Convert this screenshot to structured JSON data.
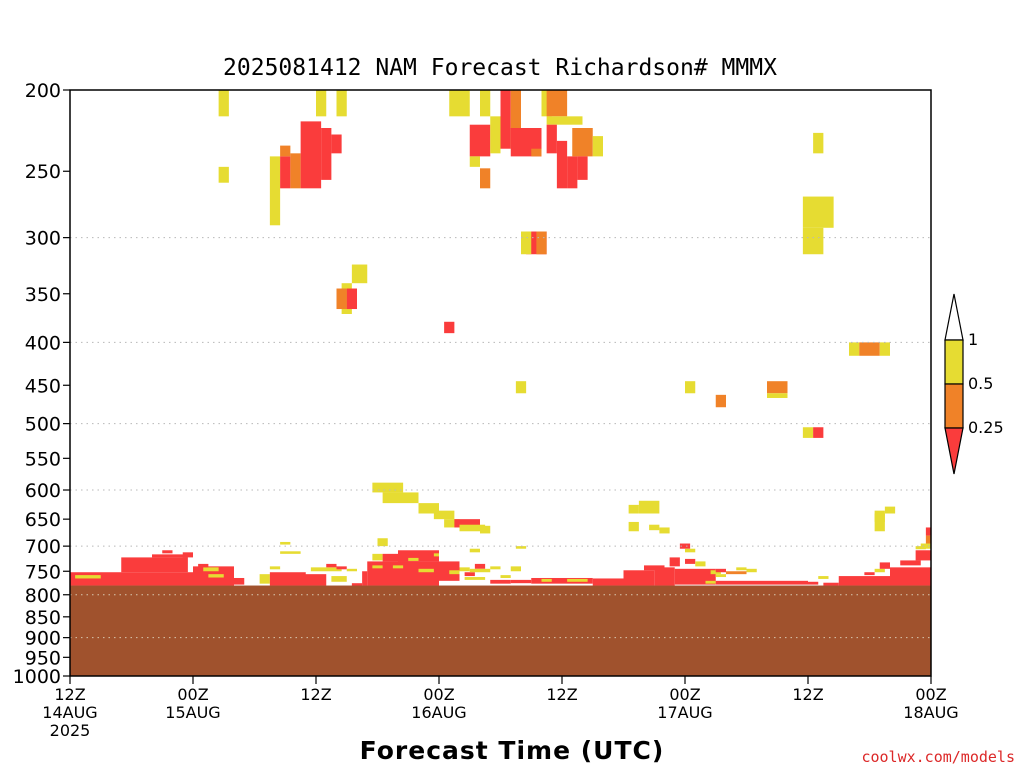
{
  "chart_data": {
    "type": "heatmap",
    "title": "2025081412 NAM Forecast Richardson# MMMX",
    "xlabel": "Forecast Time (UTC)",
    "ylabel": "",
    "watermark": "coolwx.com/models",
    "x_range_hours": [
      0,
      84
    ],
    "x_ticks": [
      {
        "hour": 0,
        "lines": [
          "12Z",
          "14AUG",
          "2025"
        ]
      },
      {
        "hour": 12,
        "lines": [
          "00Z",
          "15AUG"
        ]
      },
      {
        "hour": 24,
        "lines": [
          "12Z"
        ]
      },
      {
        "hour": 36,
        "lines": [
          "00Z",
          "16AUG"
        ]
      },
      {
        "hour": 48,
        "lines": [
          "12Z"
        ]
      },
      {
        "hour": 60,
        "lines": [
          "00Z",
          "17AUG"
        ]
      },
      {
        "hour": 72,
        "lines": [
          "12Z"
        ]
      },
      {
        "hour": 84,
        "lines": [
          "00Z",
          "18AUG"
        ]
      }
    ],
    "y_range_hpa": [
      200,
      1000
    ],
    "y_scale": "log",
    "y_ticks": [
      200,
      250,
      300,
      350,
      400,
      450,
      500,
      550,
      600,
      650,
      700,
      750,
      800,
      850,
      900,
      950,
      1000
    ],
    "dotted_grid_levels": [
      300,
      400,
      500,
      600,
      700,
      800,
      900,
      1000
    ],
    "terrain_pressure_hpa": 780,
    "terrain_color": "#a0522d",
    "legend": {
      "position": "right",
      "bins": [
        {
          "label": "1",
          "color": "#ffffff"
        },
        {
          "label": "0.5",
          "color": "#e6dc32"
        },
        {
          "label": "0.25",
          "color": "#f08228"
        },
        {
          "label": "",
          "color": "#fa3c3c"
        }
      ]
    },
    "colors": {
      "y": "#e6dc32",
      "o": "#f08228",
      "r": "#fa3c3c"
    },
    "cells": [
      {
        "t": 14.5,
        "t2": 15.5,
        "p": 200,
        "p2": 215,
        "c": "y"
      },
      {
        "t": 14.5,
        "t2": 15.5,
        "p": 247,
        "p2": 258,
        "c": "y"
      },
      {
        "t": 19.5,
        "t2": 20.5,
        "p": 240,
        "p2": 290,
        "c": "y"
      },
      {
        "t": 20.5,
        "t2": 21.5,
        "p": 240,
        "p2": 262,
        "c": "r"
      },
      {
        "t": 20.5,
        "t2": 21.5,
        "p": 233,
        "p2": 240,
        "c": "o"
      },
      {
        "t": 21.5,
        "t2": 22.5,
        "p": 238,
        "p2": 262,
        "c": "o"
      },
      {
        "t": 22.5,
        "t2": 24.5,
        "p": 218,
        "p2": 262,
        "c": "r"
      },
      {
        "t": 24,
        "t2": 25,
        "p": 200,
        "p2": 215,
        "c": "y"
      },
      {
        "t": 24.5,
        "t2": 25.5,
        "p": 222,
        "p2": 256,
        "c": "r"
      },
      {
        "t": 25.5,
        "t2": 26.5,
        "p": 226,
        "p2": 238,
        "c": "r"
      },
      {
        "t": 26,
        "t2": 27,
        "p": 200,
        "p2": 215,
        "c": "y"
      },
      {
        "t": 26.5,
        "t2": 27.5,
        "p": 340,
        "p2": 370,
        "c": "y"
      },
      {
        "t": 26,
        "t2": 27,
        "p": 345,
        "p2": 365,
        "c": "o"
      },
      {
        "t": 27,
        "t2": 28,
        "p": 345,
        "p2": 365,
        "c": "r"
      },
      {
        "t": 27.5,
        "t2": 29,
        "p": 323,
        "p2": 340,
        "c": "y"
      },
      {
        "t": 36.5,
        "t2": 37.5,
        "p": 378,
        "p2": 390,
        "c": "r"
      },
      {
        "t": 37,
        "t2": 39,
        "p": 200,
        "p2": 215,
        "c": "y"
      },
      {
        "t": 39,
        "t2": 41,
        "p": 220,
        "p2": 240,
        "c": "r"
      },
      {
        "t": 39,
        "t2": 40,
        "p": 240,
        "p2": 247,
        "c": "y"
      },
      {
        "t": 40,
        "t2": 41,
        "p": 248,
        "p2": 262,
        "c": "o"
      },
      {
        "t": 40,
        "t2": 41,
        "p": 200,
        "p2": 215,
        "c": "y"
      },
      {
        "t": 41,
        "t2": 42,
        "p": 215,
        "p2": 238,
        "c": "y"
      },
      {
        "t": 42,
        "t2": 43,
        "p": 200,
        "p2": 235,
        "c": "r"
      },
      {
        "t": 43,
        "t2": 44,
        "p": 200,
        "p2": 235,
        "c": "o"
      },
      {
        "t": 43,
        "t2": 44,
        "p": 222,
        "p2": 240,
        "c": "r"
      },
      {
        "t": 44,
        "t2": 46,
        "p": 222,
        "p2": 240,
        "c": "r"
      },
      {
        "t": 45,
        "t2": 46,
        "p": 235,
        "p2": 240,
        "c": "o"
      },
      {
        "t": 46,
        "t2": 47,
        "p": 200,
        "p2": 215,
        "c": "y"
      },
      {
        "t": 46.5,
        "t2": 48.5,
        "p": 200,
        "p2": 215,
        "c": "o"
      },
      {
        "t": 46.5,
        "t2": 50,
        "p": 215,
        "p2": 220,
        "c": "y"
      },
      {
        "t": 46.5,
        "t2": 47.5,
        "p": 220,
        "p2": 238,
        "c": "r"
      },
      {
        "t": 47.5,
        "t2": 48.5,
        "p": 230,
        "p2": 262,
        "c": "r"
      },
      {
        "t": 48.5,
        "t2": 49.5,
        "p": 240,
        "p2": 262,
        "c": "r"
      },
      {
        "t": 49,
        "t2": 51,
        "p": 222,
        "p2": 240,
        "c": "o"
      },
      {
        "t": 49.5,
        "t2": 50.5,
        "p": 240,
        "p2": 256,
        "c": "r"
      },
      {
        "t": 51,
        "t2": 52,
        "p": 227,
        "p2": 240,
        "c": "y"
      },
      {
        "t": 44.5,
        "t2": 46.5,
        "p": 295,
        "p2": 314,
        "c": "r"
      },
      {
        "t": 45.5,
        "t2": 46.5,
        "p": 295,
        "p2": 314,
        "c": "o"
      },
      {
        "t": 44,
        "t2": 45,
        "p": 295,
        "p2": 314,
        "c": "y"
      },
      {
        "t": 43.5,
        "t2": 44.5,
        "p": 445,
        "p2": 460,
        "c": "y"
      },
      {
        "t": 72.5,
        "t2": 73.5,
        "p": 225,
        "p2": 238,
        "c": "y"
      },
      {
        "t": 71.5,
        "t2": 74.5,
        "p": 268,
        "p2": 292,
        "c": "y"
      },
      {
        "t": 71.5,
        "t2": 73.5,
        "p": 292,
        "p2": 314,
        "c": "y"
      },
      {
        "t": 76,
        "t2": 77,
        "p": 400,
        "p2": 415,
        "c": "y"
      },
      {
        "t": 77,
        "t2": 79,
        "p": 400,
        "p2": 415,
        "c": "o"
      },
      {
        "t": 79,
        "t2": 80,
        "p": 400,
        "p2": 415,
        "c": "y"
      },
      {
        "t": 60,
        "t2": 61,
        "p": 445,
        "p2": 460,
        "c": "y"
      },
      {
        "t": 63,
        "t2": 64,
        "p": 462,
        "p2": 478,
        "c": "o"
      },
      {
        "t": 68,
        "t2": 70,
        "p": 445,
        "p2": 460,
        "c": "o"
      },
      {
        "t": 68,
        "t2": 70,
        "p": 460,
        "p2": 466,
        "c": "y"
      },
      {
        "t": 71.5,
        "t2": 72.5,
        "p": 505,
        "p2": 520,
        "c": "y"
      },
      {
        "t": 72.5,
        "t2": 73.5,
        "p": 505,
        "p2": 520,
        "c": "r"
      },
      {
        "t": 29.5,
        "t2": 32.5,
        "p": 588,
        "p2": 604,
        "c": "y"
      },
      {
        "t": 30.5,
        "t2": 34,
        "p": 604,
        "p2": 622,
        "c": "y"
      },
      {
        "t": 34,
        "t2": 36,
        "p": 622,
        "p2": 640,
        "c": "y"
      },
      {
        "t": 35.5,
        "t2": 37.5,
        "p": 635,
        "p2": 650,
        "c": "y"
      },
      {
        "t": 36.5,
        "t2": 38,
        "p": 650,
        "p2": 665,
        "c": "y"
      },
      {
        "t": 37.5,
        "t2": 40,
        "p": 650,
        "p2": 665,
        "c": "r"
      },
      {
        "t": 38,
        "t2": 40.5,
        "p": 660,
        "p2": 672,
        "c": "y"
      },
      {
        "t": 40,
        "t2": 41,
        "p": 662,
        "p2": 676,
        "c": "y"
      },
      {
        "t": 54.5,
        "t2": 55.5,
        "p": 625,
        "p2": 640,
        "c": "y"
      },
      {
        "t": 55.5,
        "t2": 57.5,
        "p": 618,
        "p2": 640,
        "c": "y"
      },
      {
        "t": 54.5,
        "t2": 55.5,
        "p": 655,
        "p2": 672,
        "c": "y"
      },
      {
        "t": 56.5,
        "t2": 57.5,
        "p": 660,
        "p2": 670,
        "c": "y"
      },
      {
        "t": 57.5,
        "t2": 58.5,
        "p": 665,
        "p2": 676,
        "c": "y"
      },
      {
        "t": 78.5,
        "t2": 79.5,
        "p": 635,
        "p2": 655,
        "c": "y"
      },
      {
        "t": 79.5,
        "t2": 80.5,
        "p": 628,
        "p2": 640,
        "c": "y"
      },
      {
        "t": 78.5,
        "t2": 79.5,
        "p": 640,
        "p2": 672,
        "c": "y"
      },
      {
        "t": 0,
        "t2": 12,
        "p": 752,
        "p2": 780,
        "c": "r"
      },
      {
        "t": 0.5,
        "t2": 3,
        "p": 758,
        "p2": 765,
        "c": "y"
      },
      {
        "t": 5,
        "t2": 11.5,
        "p": 722,
        "p2": 752,
        "c": "r"
      },
      {
        "t": 8,
        "t2": 11.5,
        "p": 716,
        "p2": 722,
        "c": "r"
      },
      {
        "t": 9,
        "t2": 10,
        "p": 708,
        "p2": 714,
        "c": "r"
      },
      {
        "t": 11,
        "t2": 12,
        "p": 712,
        "p2": 722,
        "c": "r"
      },
      {
        "t": 12,
        "t2": 16,
        "p": 740,
        "p2": 780,
        "c": "r"
      },
      {
        "t": 13,
        "t2": 14.5,
        "p": 742,
        "p2": 750,
        "c": "y"
      },
      {
        "t": 12.5,
        "t2": 13.5,
        "p": 735,
        "p2": 742,
        "c": "r"
      },
      {
        "t": 13.5,
        "t2": 15,
        "p": 756,
        "p2": 763,
        "c": "y"
      },
      {
        "t": 16,
        "t2": 17,
        "p": 764,
        "p2": 778,
        "c": "r"
      },
      {
        "t": 18.5,
        "t2": 19.5,
        "p": 756,
        "p2": 776,
        "c": "y"
      },
      {
        "t": 19.5,
        "t2": 23,
        "p": 752,
        "p2": 780,
        "c": "r"
      },
      {
        "t": 19.5,
        "t2": 20.5,
        "p": 740,
        "p2": 746,
        "c": "y"
      },
      {
        "t": 20.5,
        "t2": 21.5,
        "p": 692,
        "p2": 697,
        "c": "y"
      },
      {
        "t": 20.5,
        "t2": 22.5,
        "p": 710,
        "p2": 715,
        "c": "y"
      },
      {
        "t": 21.5,
        "t2": 25,
        "p": 756,
        "p2": 780,
        "c": "r"
      },
      {
        "t": 23.5,
        "t2": 26.5,
        "p": 742,
        "p2": 750,
        "c": "y"
      },
      {
        "t": 25,
        "t2": 26,
        "p": 735,
        "p2": 742,
        "c": "r"
      },
      {
        "t": 25.5,
        "t2": 27,
        "p": 760,
        "p2": 772,
        "c": "y"
      },
      {
        "t": 26,
        "t2": 27,
        "p": 740,
        "p2": 746,
        "c": "r"
      },
      {
        "t": 27,
        "t2": 28,
        "p": 745,
        "p2": 750,
        "c": "y"
      },
      {
        "t": 27.5,
        "t2": 28.5,
        "p": 775,
        "p2": 782,
        "c": "r"
      },
      {
        "t": 28.5,
        "t2": 29,
        "p": 750,
        "p2": 780,
        "c": "r"
      },
      {
        "t": 29,
        "t2": 36,
        "p": 730,
        "p2": 780,
        "c": "r"
      },
      {
        "t": 29.5,
        "t2": 30.5,
        "p": 738,
        "p2": 744,
        "c": "y"
      },
      {
        "t": 29.5,
        "t2": 30.5,
        "p": 715,
        "p2": 728,
        "c": "y"
      },
      {
        "t": 30,
        "t2": 31,
        "p": 685,
        "p2": 700,
        "c": "y"
      },
      {
        "t": 30.5,
        "t2": 33,
        "p": 715,
        "p2": 730,
        "c": "r"
      },
      {
        "t": 32,
        "t2": 36,
        "p": 708,
        "p2": 730,
        "c": "r"
      },
      {
        "t": 31.5,
        "t2": 32.5,
        "p": 738,
        "p2": 744,
        "c": "y"
      },
      {
        "t": 33,
        "t2": 34,
        "p": 723,
        "p2": 729,
        "c": "y"
      },
      {
        "t": 34,
        "t2": 35.5,
        "p": 745,
        "p2": 752,
        "c": "y"
      },
      {
        "t": 35.5,
        "t2": 36,
        "p": 714,
        "p2": 720,
        "c": "y"
      },
      {
        "t": 36,
        "t2": 38,
        "p": 730,
        "p2": 770,
        "c": "r"
      },
      {
        "t": 37,
        "t2": 38,
        "p": 748,
        "p2": 756,
        "c": "y"
      },
      {
        "t": 38,
        "t2": 39,
        "p": 742,
        "p2": 750,
        "c": "y"
      },
      {
        "t": 38.5,
        "t2": 39.5,
        "p": 752,
        "p2": 760,
        "c": "r"
      },
      {
        "t": 38.5,
        "t2": 40.5,
        "p": 762,
        "p2": 768,
        "c": "y"
      },
      {
        "t": 39.5,
        "t2": 40.5,
        "p": 735,
        "p2": 745,
        "c": "r"
      },
      {
        "t": 39,
        "t2": 41,
        "p": 745,
        "p2": 752,
        "c": "y"
      },
      {
        "t": 39,
        "t2": 40,
        "p": 705,
        "p2": 712,
        "c": "y"
      },
      {
        "t": 41,
        "t2": 42,
        "p": 740,
        "p2": 746,
        "c": "y"
      },
      {
        "t": 41,
        "t2": 43,
        "p": 768,
        "p2": 776,
        "c": "r"
      },
      {
        "t": 42,
        "t2": 43,
        "p": 758,
        "p2": 764,
        "c": "y"
      },
      {
        "t": 43,
        "t2": 44,
        "p": 740,
        "p2": 750,
        "c": "y"
      },
      {
        "t": 43,
        "t2": 45,
        "p": 768,
        "p2": 775,
        "c": "r"
      },
      {
        "t": 43.5,
        "t2": 44.5,
        "p": 700,
        "p2": 705,
        "c": "y"
      },
      {
        "t": 45,
        "t2": 51,
        "p": 764,
        "p2": 776,
        "c": "r"
      },
      {
        "t": 46,
        "t2": 47,
        "p": 766,
        "p2": 772,
        "c": "y"
      },
      {
        "t": 48.5,
        "t2": 50.5,
        "p": 766,
        "p2": 772,
        "c": "y"
      },
      {
        "t": 51,
        "t2": 54,
        "p": 765,
        "p2": 780,
        "c": "r"
      },
      {
        "t": 54,
        "t2": 57,
        "p": 748,
        "p2": 780,
        "c": "r"
      },
      {
        "t": 56,
        "t2": 58,
        "p": 738,
        "p2": 748,
        "c": "r"
      },
      {
        "t": 57,
        "t2": 59,
        "p": 742,
        "p2": 780,
        "c": "r"
      },
      {
        "t": 58.5,
        "t2": 59.5,
        "p": 722,
        "p2": 740,
        "c": "r"
      },
      {
        "t": 59,
        "t2": 63,
        "p": 745,
        "p2": 778,
        "c": "r"
      },
      {
        "t": 59.5,
        "t2": 60.5,
        "p": 695,
        "p2": 705,
        "c": "r"
      },
      {
        "t": 60,
        "t2": 61,
        "p": 705,
        "p2": 712,
        "c": "y"
      },
      {
        "t": 60,
        "t2": 61,
        "p": 725,
        "p2": 735,
        "c": "r"
      },
      {
        "t": 61,
        "t2": 62,
        "p": 730,
        "p2": 740,
        "c": "y"
      },
      {
        "t": 62.5,
        "t2": 63.5,
        "p": 748,
        "p2": 756,
        "c": "y"
      },
      {
        "t": 62,
        "t2": 63,
        "p": 770,
        "p2": 776,
        "c": "y"
      },
      {
        "t": 63,
        "t2": 64,
        "p": 745,
        "p2": 752,
        "c": "r"
      },
      {
        "t": 63,
        "t2": 64,
        "p": 756,
        "p2": 762,
        "c": "y"
      },
      {
        "t": 63,
        "t2": 72,
        "p": 770,
        "p2": 778,
        "c": "r"
      },
      {
        "t": 64,
        "t2": 66,
        "p": 750,
        "p2": 756,
        "c": "o"
      },
      {
        "t": 65,
        "t2": 66,
        "p": 742,
        "p2": 748,
        "c": "y"
      },
      {
        "t": 66,
        "t2": 67,
        "p": 745,
        "p2": 752,
        "c": "y"
      },
      {
        "t": 72,
        "t2": 73,
        "p": 772,
        "p2": 778,
        "c": "r"
      },
      {
        "t": 73,
        "t2": 74,
        "p": 760,
        "p2": 766,
        "c": "y"
      },
      {
        "t": 73.5,
        "t2": 75,
        "p": 774,
        "p2": 780,
        "c": "r"
      },
      {
        "t": 75,
        "t2": 81,
        "p": 760,
        "p2": 780,
        "c": "r"
      },
      {
        "t": 77.5,
        "t2": 78.5,
        "p": 752,
        "p2": 758,
        "c": "r"
      },
      {
        "t": 78.5,
        "t2": 79.5,
        "p": 745,
        "p2": 752,
        "c": "y"
      },
      {
        "t": 79,
        "t2": 80,
        "p": 732,
        "p2": 745,
        "c": "r"
      },
      {
        "t": 80,
        "t2": 82,
        "p": 752,
        "p2": 770,
        "c": "y"
      },
      {
        "t": 80,
        "t2": 84,
        "p": 742,
        "p2": 780,
        "c": "r"
      },
      {
        "t": 81,
        "t2": 83,
        "p": 728,
        "p2": 738,
        "c": "r"
      },
      {
        "t": 82.5,
        "t2": 84,
        "p": 708,
        "p2": 728,
        "c": "r"
      },
      {
        "t": 83,
        "t2": 84,
        "p": 695,
        "p2": 705,
        "c": "y"
      },
      {
        "t": 83.5,
        "t2": 84,
        "p": 665,
        "p2": 680,
        "c": "r"
      },
      {
        "t": 83.5,
        "t2": 84,
        "p": 680,
        "p2": 695,
        "c": "o"
      },
      {
        "t": 82.5,
        "t2": 83.5,
        "p": 700,
        "p2": 706,
        "c": "y"
      }
    ]
  }
}
